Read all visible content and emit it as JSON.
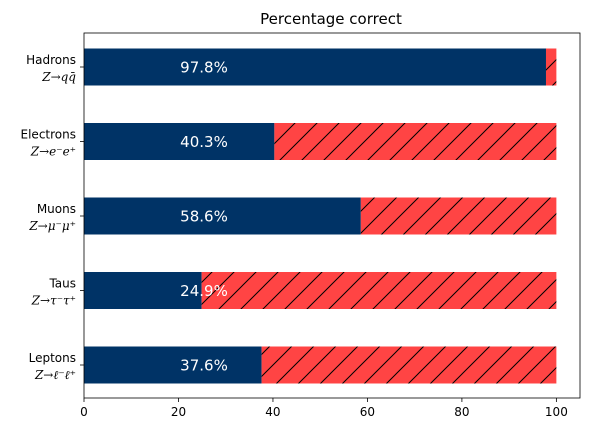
{
  "chart_data": {
    "type": "bar",
    "orientation": "horizontal",
    "stacked": true,
    "title": "Percentage correct",
    "xlabel": "",
    "ylabel": "",
    "xlim": [
      0,
      105
    ],
    "xticks": [
      0,
      20,
      40,
      60,
      80,
      100
    ],
    "categories": [
      {
        "name": "Hadrons",
        "process": "Z→qq̄"
      },
      {
        "name": "Electrons",
        "process": "Z→e⁻e⁺"
      },
      {
        "name": "Muons",
        "process": "Z→μ⁻μ⁺"
      },
      {
        "name": "Taus",
        "process": "Z→τ⁻τ⁺"
      },
      {
        "name": "Leptons",
        "process": "Z→ℓ⁻ℓ⁺"
      }
    ],
    "series": [
      {
        "values": [
          97.8,
          40.3,
          58.6,
          24.9,
          37.6
        ],
        "color": "#003366",
        "hatch": "none"
      },
      {
        "values": [
          2.2,
          59.7,
          41.4,
          75.1,
          62.4
        ],
        "color": "#ff4444",
        "hatch": "diagonal"
      }
    ],
    "data_labels": [
      "97.8%",
      "40.3%",
      "58.6%",
      "24.9%",
      "37.6%"
    ],
    "grid": false,
    "legend": "none"
  }
}
